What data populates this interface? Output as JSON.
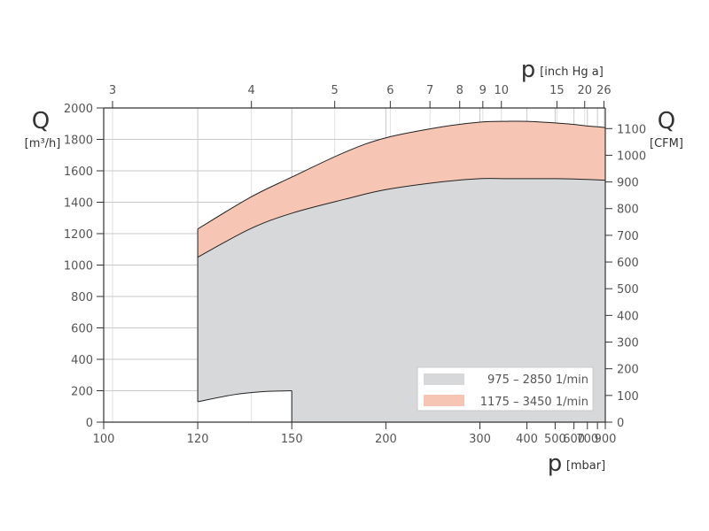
{
  "chart_data": {
    "type": "area",
    "x_bottom": {
      "scale": "reciprocal",
      "range": [
        100,
        900
      ],
      "ticks": [
        100,
        120,
        150,
        200,
        300,
        400,
        500,
        600,
        700,
        900
      ],
      "tick_labels": [
        "100",
        "120",
        "150",
        "200",
        "300",
        "400",
        "500",
        "600",
        "700",
        "900"
      ],
      "extra_ticks": [
        800
      ],
      "symbol": "p",
      "unit": "[mbar]"
    },
    "x_top": {
      "ticks": [
        3,
        4,
        5,
        6,
        7,
        8,
        9,
        10,
        15,
        20,
        26
      ],
      "tick_labels": [
        "3",
        "4",
        "5",
        "6",
        "7",
        "8",
        "9",
        "10",
        "15",
        "20",
        "26"
      ],
      "symbol": "p",
      "unit": "[inch Hg a]"
    },
    "y_left": {
      "range": [
        0,
        2000
      ],
      "ticks": [
        0,
        200,
        400,
        600,
        800,
        1000,
        1200,
        1400,
        1600,
        1800,
        2000
      ],
      "tick_labels": [
        "0",
        "200",
        "400",
        "600",
        "800",
        "1000",
        "1200",
        "1400",
        "1600",
        "1800",
        "2000"
      ],
      "symbol": "Q",
      "unit": "[m³/h]"
    },
    "y_right": {
      "range_cfm": [
        0,
        1177
      ],
      "ticks": [
        0,
        100,
        200,
        300,
        400,
        500,
        600,
        700,
        800,
        900,
        1000,
        1100
      ],
      "tick_labels": [
        "0",
        "100",
        "200",
        "300",
        "400",
        "500",
        "600",
        "700",
        "800",
        "900",
        "1000",
        "1100"
      ],
      "symbol": "Q",
      "unit": "[CFM]"
    },
    "grid": true,
    "legend_position": "bottom-right",
    "series": [
      {
        "name": "975 – 2850  1/min",
        "color": "#d7d8da",
        "x": [
          120,
          135,
          150,
          175,
          200,
          250,
          300,
          350,
          400,
          500,
          600,
          700,
          800,
          900
        ],
        "y": [
          1050,
          1230,
          1330,
          1420,
          1480,
          1530,
          1550,
          1550,
          1550,
          1550,
          1548,
          1545,
          1542,
          1540
        ]
      },
      {
        "name": "1175 – 3450  1/min",
        "color": "#f7c5b4",
        "x": [
          120,
          135,
          150,
          175,
          200,
          250,
          300,
          350,
          400,
          500,
          600,
          700,
          800,
          900
        ],
        "y": [
          1230,
          1430,
          1560,
          1720,
          1810,
          1880,
          1910,
          1915,
          1915,
          1905,
          1895,
          1885,
          1880,
          1875
        ]
      }
    ],
    "cutout": {
      "x": [
        120,
        130,
        140,
        150
      ],
      "y": [
        130,
        175,
        195,
        200
      ]
    }
  }
}
